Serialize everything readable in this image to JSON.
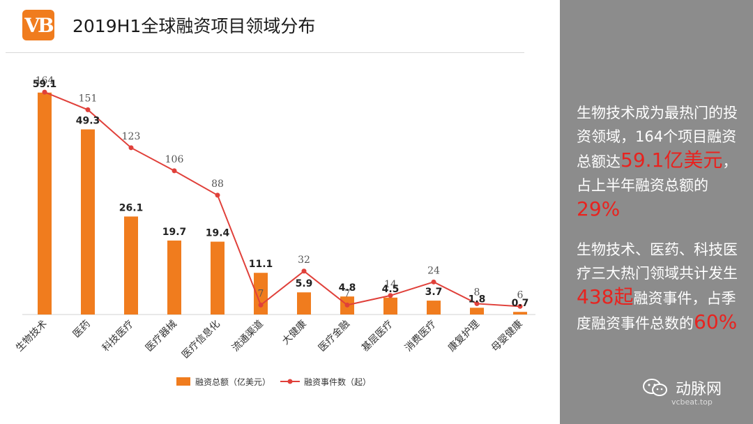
{
  "header": {
    "logo_text": "VB",
    "title": "2019H1全球融资项目领域分布"
  },
  "chart_data": {
    "type": "bar+line",
    "title": "2019H1全球融资项目领域分布",
    "categories": [
      "生物技术",
      "医药",
      "科技医疗",
      "医疗器械",
      "医疗信息化",
      "流通渠道",
      "大健康",
      "医疗金融",
      "基层医疗",
      "消费医疗",
      "康复护理",
      "母婴健康"
    ],
    "series": [
      {
        "name": "融资总额（亿美元）",
        "kind": "bar",
        "color": "#f07c1e",
        "values": [
          59.1,
          49.3,
          26.1,
          19.7,
          19.4,
          11.1,
          5.9,
          4.8,
          4.5,
          3.7,
          1.8,
          0.7
        ]
      },
      {
        "name": "融资事件数（起）",
        "kind": "line",
        "color": "#e0403a",
        "values": [
          164,
          151,
          123,
          106,
          88,
          7,
          32,
          7,
          14,
          24,
          8,
          6
        ]
      }
    ],
    "bar_axis_max": 65,
    "line_axis_max": 180,
    "legend_position": "bottom-center"
  },
  "sidebar": {
    "para1": {
      "t1": "生物技术成为最热门的投资领域，164个项目融资总额达",
      "h1": "59.1亿美元",
      "t2": "，占上半年融资总额的",
      "h2": "29%"
    },
    "para2": {
      "t1": "生物技术、医药、科技医疗三大热门领域共计发生",
      "h1": "438起",
      "t2": "融资事件，占季度融资事件总数的",
      "h2": "60%"
    },
    "brand_name": "动脉网",
    "brand_url": "vcbeat.top",
    "colors": {
      "background": "#8c8c8c",
      "highlight": "#e8231f"
    }
  }
}
